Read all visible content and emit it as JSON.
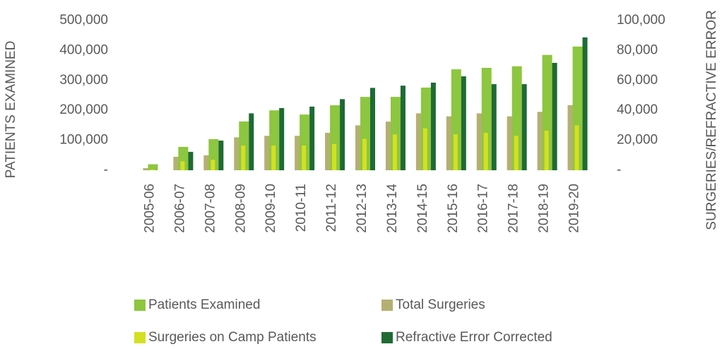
{
  "chart_data": {
    "type": "bar",
    "categories": [
      "2005-06",
      "2006-07",
      "2007-08",
      "2008-09",
      "2009-10",
      "2010-11",
      "2011-12",
      "2012-13",
      "2013-14",
      "2014-15",
      "2015-16",
      "2016-17",
      "2017-18",
      "2018-19",
      "2019-20"
    ],
    "series": [
      {
        "name": "Total Surgeries",
        "color": "#b4b072",
        "axis": "y2",
        "values": [
          1400,
          9000,
          10000,
          22000,
          23000,
          23000,
          25000,
          30000,
          32500,
          38000,
          36000,
          38000,
          36000,
          39000,
          43500
        ]
      },
      {
        "name": "Patients Examined",
        "color": "#8dc63f",
        "values": [
          20000,
          78000,
          104000,
          163000,
          200000,
          186000,
          217000,
          245000,
          245000,
          276000,
          337000,
          342000,
          347000,
          385000,
          413000
        ]
      },
      {
        "name": "Surgeries on Camp Patients",
        "color": "#d4e021",
        "axis": "y2",
        "values": [
          500,
          6000,
          7000,
          16500,
          16500,
          16500,
          17500,
          21000,
          24000,
          28000,
          24000,
          25000,
          23000,
          26500,
          30000
        ]
      },
      {
        "name": "Refractive Error Corrected",
        "color": "#1e6b34",
        "axis": "y2",
        "values": [
          0,
          12300,
          19800,
          38000,
          41500,
          42500,
          47500,
          55000,
          56500,
          58500,
          62700,
          57500,
          57500,
          71700,
          88700
        ]
      }
    ],
    "ylabel": "PATIENTS EXAMINED",
    "y2label": "SURGERIES/REFRACTIVE ERROR",
    "ylim": [
      0,
      500000
    ],
    "yticks": [
      {
        "value": 0,
        "label": "-"
      },
      {
        "value": 100000,
        "label": "100,000"
      },
      {
        "value": 200000,
        "label": "200,000"
      },
      {
        "value": 300000,
        "label": "300,000"
      },
      {
        "value": 400000,
        "label": "400,000"
      },
      {
        "value": 500000,
        "label": "500,000"
      }
    ],
    "y2lim": [
      0,
      100000
    ],
    "y2ticks": [
      {
        "value": 0,
        "label": "-"
      },
      {
        "value": 20000,
        "label": "20,000"
      },
      {
        "value": 40000,
        "label": "40,000"
      },
      {
        "value": 60000,
        "label": "60,000"
      },
      {
        "value": 80000,
        "label": "80,000"
      },
      {
        "value": 100000,
        "label": "100,000"
      }
    ],
    "legend": "bottom"
  }
}
